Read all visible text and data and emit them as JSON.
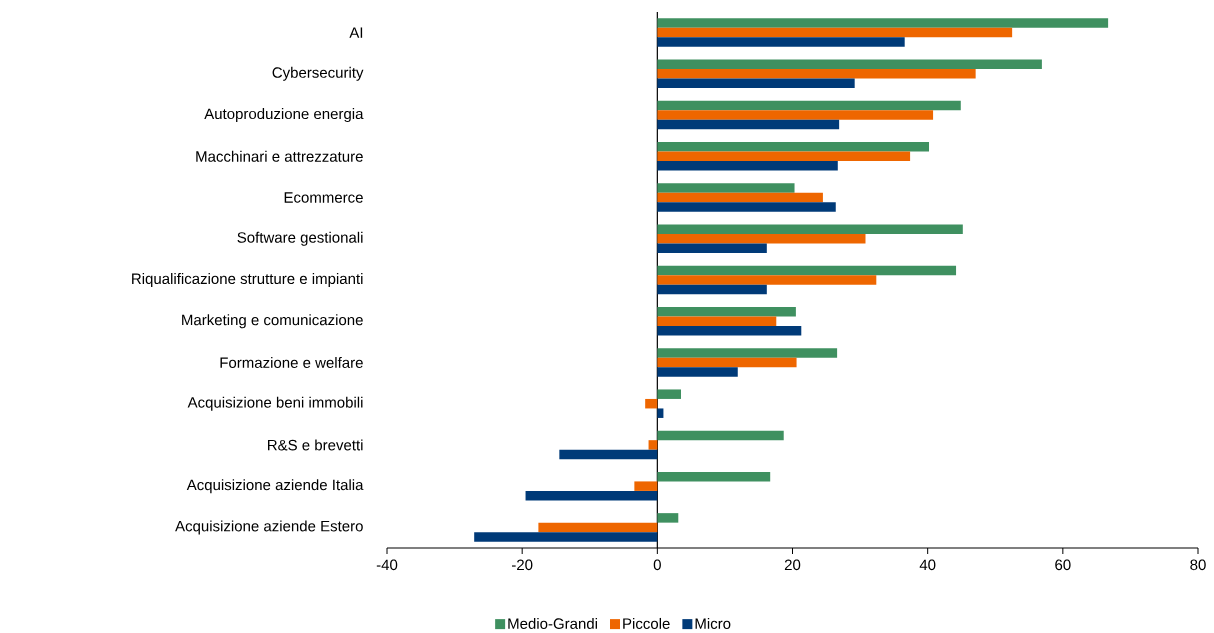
{
  "chart_data": {
    "type": "bar",
    "orientation": "horizontal",
    "categories": [
      "AI",
      "Cybersecurity",
      "Autoproduzione energia",
      "Macchinari e attrezzature",
      "Ecommerce",
      "Software gestionali",
      "Riqualificazione strutture e impianti",
      "Marketing e comunicazione",
      "Formazione e welfare",
      "Acquisizione beni immobili",
      "R&S e brevetti",
      "Acquisizione aziende Italia",
      "Acquisizione aziende Estero"
    ],
    "series": [
      {
        "name": "Medio-Grandi",
        "color": "#3f9060",
        "values": [
          66.7,
          56.9,
          44.9,
          40.2,
          20.3,
          45.2,
          44.2,
          20.5,
          26.6,
          3.5,
          18.7,
          16.7,
          3.1
        ]
      },
      {
        "name": "Piccole",
        "color": "#ee6600",
        "values": [
          52.5,
          47.1,
          40.8,
          37.4,
          24.5,
          30.8,
          32.4,
          17.6,
          20.6,
          -1.8,
          -1.3,
          -3.4,
          -17.6
        ]
      },
      {
        "name": "Micro",
        "color": "#003a78",
        "values": [
          36.6,
          29.2,
          26.9,
          26.7,
          26.4,
          16.2,
          16.2,
          21.3,
          11.9,
          0.9,
          -14.5,
          -19.5,
          -27.1
        ]
      }
    ],
    "xlim": [
      -40,
      80
    ],
    "xticks": [
      -40,
      -20,
      0,
      20,
      40,
      60,
      80
    ],
    "legend": "bottom"
  }
}
